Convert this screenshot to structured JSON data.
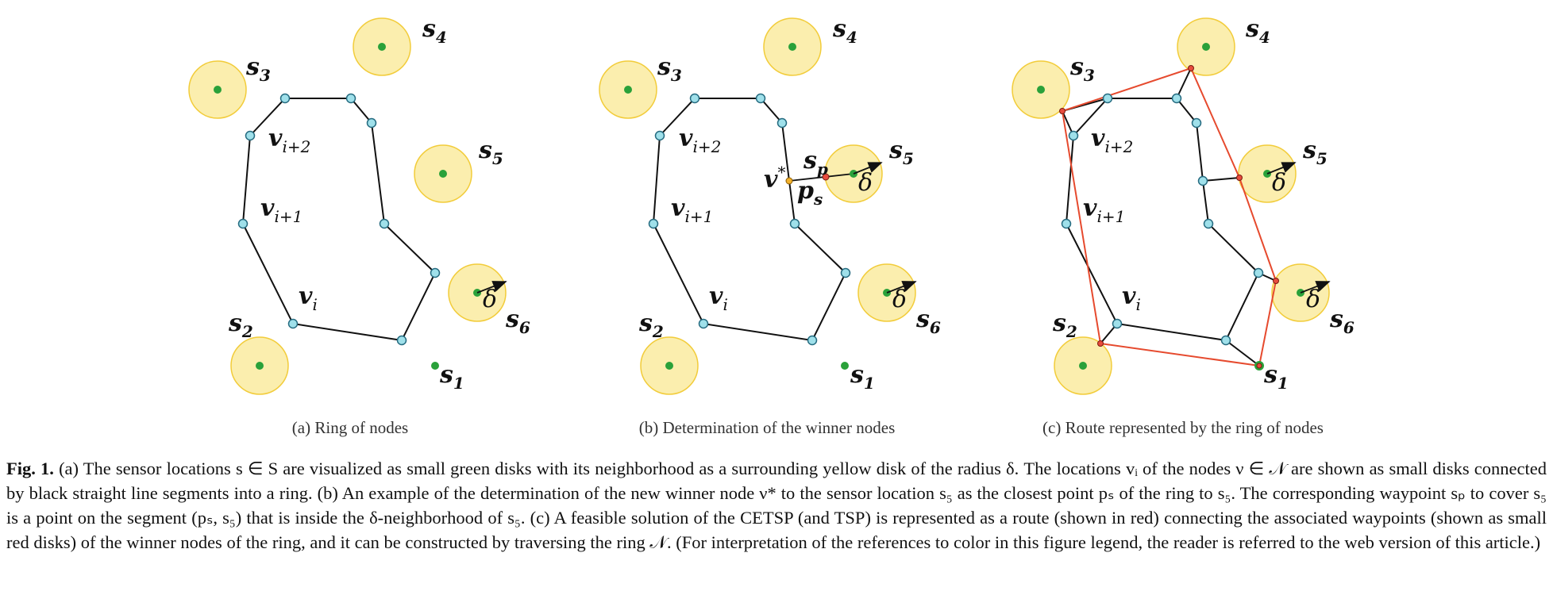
{
  "colors": {
    "sensor_disk_fill": "#fbeeae",
    "sensor_disk_stroke": "#f2cc3a",
    "sensor_dot": "#2aa13a",
    "node_fill": "#9fe0ea",
    "node_stroke": "#256b80",
    "ring_edge": "#111111",
    "route": "#e64a2e",
    "waypoint_fill": "#e84c3d"
  },
  "panels": [
    {
      "subcaption": "(a) Ring of nodes",
      "labels": {
        "s3": "s",
        "s3_sub": "3",
        "s4": "s",
        "s4_sub": "4",
        "s5": "s",
        "s5_sub": "5",
        "s6": "s",
        "s6_sub": "6",
        "s2": "s",
        "s2_sub": "2",
        "s1": "s",
        "s1_sub": "1",
        "v_i2": "v",
        "v_i2_sub": "i+2",
        "v_i1": "v",
        "v_i1_sub": "i+1",
        "v_i": "v",
        "v_i_sub": "i",
        "delta": "δ"
      }
    },
    {
      "subcaption": "(b) Determination of the winner nodes",
      "labels": {
        "s3": "s",
        "s3_sub": "3",
        "s4": "s",
        "s4_sub": "4",
        "s5": "s",
        "s5_sub": "5",
        "s6": "s",
        "s6_sub": "6",
        "s2": "s",
        "s2_sub": "2",
        "s1": "s",
        "s1_sub": "1",
        "v_i2": "v",
        "v_i2_sub": "i+2",
        "v_i1": "v",
        "v_i1_sub": "i+1",
        "v_i": "v",
        "v_i_sub": "i",
        "v_star": "v",
        "v_star_sup": "*",
        "s_p": "s",
        "s_p_sub": "p",
        "p_s": "p",
        "p_s_sub": "s",
        "delta": "δ"
      }
    },
    {
      "subcaption": "(c) Route represented by the ring of nodes",
      "labels": {
        "s3": "s",
        "s3_sub": "3",
        "s4": "s",
        "s4_sub": "4",
        "s5": "s",
        "s5_sub": "5",
        "s6": "s",
        "s6_sub": "6",
        "s2": "s",
        "s2_sub": "2",
        "s1": "s",
        "s1_sub": "1",
        "v_i2": "v",
        "v_i2_sub": "i+2",
        "v_i1": "v",
        "v_i1_sub": "i+1",
        "v_i": "v",
        "v_i_sub": "i",
        "delta": "δ"
      }
    }
  ],
  "caption": {
    "lead": "Fig. 1.",
    "text": " (a) The sensor locations s ∈ S are visualized as small green disks with its neighborhood as a surrounding yellow disk of the radius δ. The locations vᵢ of the nodes ν ∈ 𝒩 are shown as small disks connected by black straight line segments into a ring. (b) An example of the determination of the new winner node ν* to the sensor location s₅ as the closest point pₛ of the ring to s₅. The corresponding waypoint sₚ to cover s₅ is a point on the segment (pₛ, s₅) that is inside the δ-neighborhood of s₅. (c) A feasible solution of the CETSP (and TSP) is represented as a route (shown in red) connecting the associated waypoints (shown as small red disks) of the winner nodes of the ring, and it can be constructed by traversing the ring 𝒩. (For interpretation of the references to color in this figure legend, the reader is referred to the web version of this article.)"
  }
}
